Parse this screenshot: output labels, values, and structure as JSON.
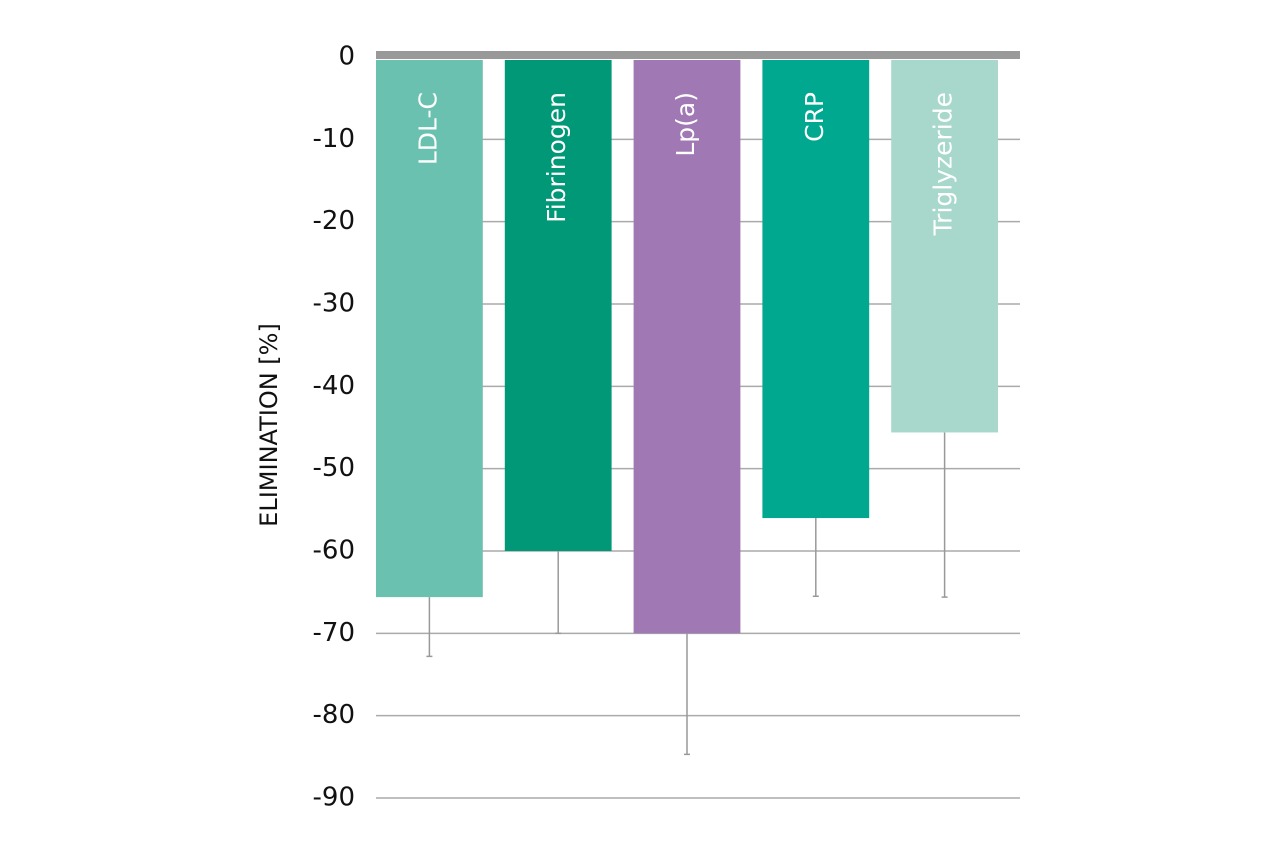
{
  "chart_data": {
    "type": "bar",
    "y_label": "ELIMINATION [%]",
    "categories": [
      "LDL-C",
      "Fibrinogen",
      "Lp(a)",
      "CRP",
      "Triglyzeride"
    ],
    "values": [
      -65.6,
      -60,
      -70,
      -56,
      -45.6
    ],
    "errors": [
      7.2,
      10,
      14.7,
      9.5,
      20
    ],
    "colors": [
      "#6bc1b0",
      "#009877",
      "#a078b4",
      "#00a890",
      "#a8d8cc"
    ],
    "ylim": [
      -90,
      0
    ],
    "yticks": [
      0,
      -10,
      -20,
      -30,
      -40,
      -50,
      -60,
      -70,
      -80,
      -90
    ],
    "grid": true
  }
}
